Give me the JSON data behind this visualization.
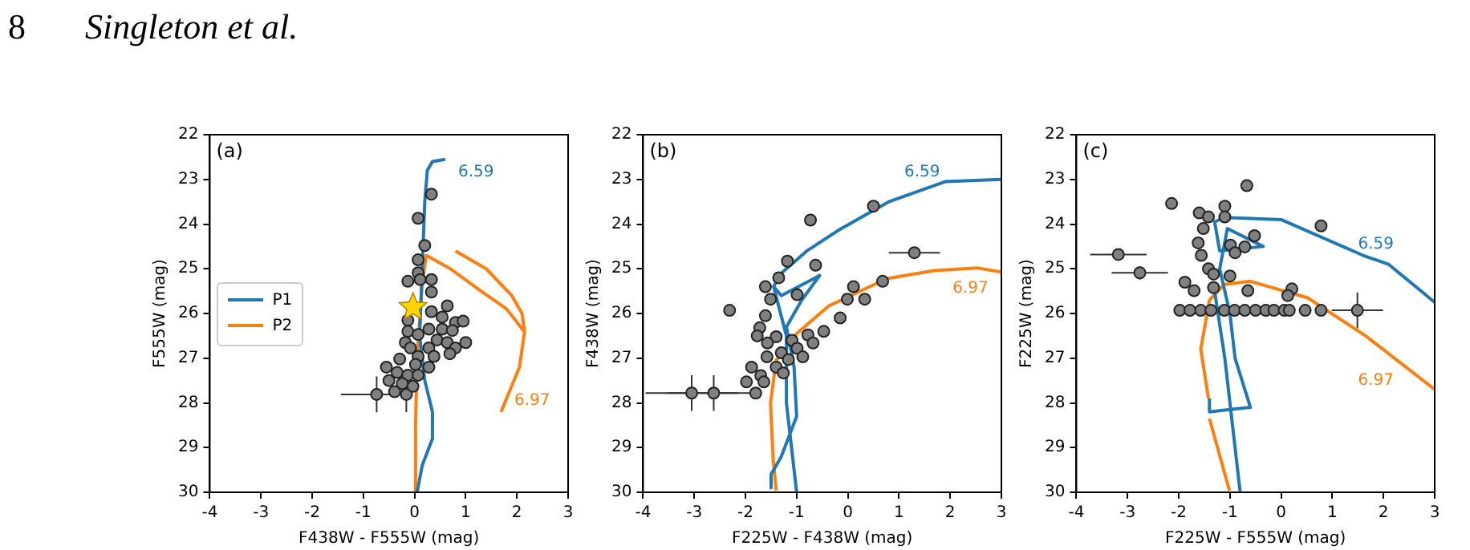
{
  "chart_data": [
    {
      "type": "other",
      "annotations": [
        "8",
        "Singleton et al."
      ]
    },
    {
      "type": "scatter",
      "xlabel": "F438W - F555W (mag)",
      "ylabel": "F555W (mag)",
      "xlim": [
        -4,
        3
      ],
      "xticks": [
        -4,
        -3,
        -2,
        -1,
        0,
        1,
        2,
        3
      ],
      "ylim": [
        30,
        22
      ],
      "yticks": [
        22,
        23,
        24,
        25,
        26,
        27,
        28,
        29,
        30
      ],
      "legend": "left",
      "annotations": [
        "(a)",
        "6.59",
        "6.97"
      ],
      "series": [
        {
          "name": "P1",
          "type": "line",
          "marker": "none",
          "color": "#1f77b4",
          "x": [
            0.6,
            0.35,
            0.25,
            0.2,
            0.15,
            0.1,
            0.2,
            0.35,
            0.35,
            0.15,
            0.05
          ],
          "values": [
            22.55,
            22.6,
            22.8,
            23.5,
            25,
            26.5,
            27.5,
            28.2,
            28.8,
            29.4,
            30
          ]
        },
        {
          "name": "P2",
          "type": "line",
          "marker": "none",
          "color": "#ff7f0e",
          "x": [
            0,
            0.02,
            0.05,
            0.15,
            0.23,
            0.7,
            1.3,
            1.8,
            2.14,
            null,
            0.8,
            1.4,
            1.9,
            2.1,
            2.15,
            2.05,
            1.69
          ],
          "values": [
            30,
            28.5,
            27,
            25.3,
            24.7,
            25.0,
            25.5,
            25.9,
            26.4,
            null,
            24.6,
            25.0,
            25.6,
            26.0,
            26.4,
            27.2,
            28.2
          ]
        },
        {
          "marker": "circle",
          "color": "#808080",
          "x": [
            0.33,
            0.07,
            0.2,
            0.07,
            0.07,
            0.11,
            -0.13,
            0.33,
            0.33,
            0.64,
            0.33,
            -0.13,
            0.54,
            0.8,
            0.95,
            0.28,
            0.54,
            0.74,
            -0.13,
            0.07,
            -0.18,
            0.44,
            0.64,
            1.0,
            0.8,
            0.28,
            -0.08,
            0.07,
            0.38,
            0.69,
            -0.29,
            0.02,
            -0.55,
            0.28,
            -0.34,
            -0.13,
            0.07,
            -0.5,
            -0.24,
            -0.03,
            -0.39
          ],
          "values": [
            23.33,
            23.87,
            24.48,
            24.8,
            25.09,
            25.24,
            25.28,
            25.24,
            25.52,
            25.83,
            25.96,
            26.15,
            26.08,
            26.2,
            26.17,
            26.35,
            26.35,
            26.38,
            26.4,
            26.47,
            26.65,
            26.59,
            26.65,
            26.65,
            26.77,
            26.77,
            26.77,
            26.96,
            26.96,
            26.9,
            27.02,
            27.14,
            27.2,
            27.2,
            27.32,
            27.38,
            27.38,
            27.5,
            27.57,
            27.63,
            27.75
          ]
        },
        {
          "marker": "circle",
          "color": "#808080",
          "x": [
            -0.16,
            -0.74
          ],
          "values": [
            27.81,
            27.81
          ],
          "errors": [
            0.4,
            0.4
          ],
          "xerrors": [
            null,
            0.7
          ]
        },
        {
          "marker": "star",
          "color": "#ffd700",
          "x": [
            -0.03
          ],
          "values": [
            25.86
          ]
        }
      ]
    },
    {
      "type": "scatter",
      "xlabel": "F225W - F438W (mag)",
      "ylabel": "F438W (mag)",
      "xlim": [
        -4,
        3
      ],
      "xticks": [
        -4,
        -3,
        -2,
        -1,
        0,
        1,
        2,
        3
      ],
      "ylim": [
        30,
        22
      ],
      "yticks": [
        22,
        23,
        24,
        25,
        26,
        27,
        28,
        29,
        30
      ],
      "annotations": [
        "(b)",
        "6.59",
        "6.97"
      ],
      "series": [
        {
          "type": "line",
          "marker": "none",
          "color": "#1f77b4",
          "x": [
            3.0,
            1.9,
            0.8,
            -0.2,
            -0.8,
            -1.3,
            -1.45,
            -1.3,
            -0.55,
            -0.9,
            -1.2,
            -1.05,
            -1.0,
            -1.3,
            -1.5,
            -1.5,
            null,
            -1.45,
            -1.2,
            -1.2,
            -1.0
          ],
          "values": [
            23.0,
            23.05,
            23.5,
            24.15,
            24.6,
            25.1,
            25.4,
            25.6,
            25.15,
            25.7,
            26.3,
            27.2,
            28.3,
            29.2,
            29.6,
            29.9,
            null,
            25.4,
            26.5,
            28.0,
            30
          ]
        },
        {
          "type": "line",
          "marker": "none",
          "color": "#ff7f0e",
          "x": [
            3.0,
            2.52,
            1.69,
            0.76,
            -0.37,
            -0.99,
            -1.4,
            -1.51,
            -1.46,
            -1.4
          ],
          "values": [
            25.07,
            24.98,
            25.04,
            25.22,
            25.83,
            26.44,
            27.05,
            28.0,
            29.25,
            29.96
          ]
        },
        {
          "marker": "circle",
          "color": "#808080",
          "x": [
            0.5,
            -0.73,
            -1.18,
            -0.63,
            -2.31,
            -1.61,
            -1.35,
            0.11,
            0.68,
            -0.01,
            0.33,
            -0.15,
            -0.99,
            -1.51,
            -1.61,
            -1.72,
            -0.47,
            -0.78,
            -1.77,
            -1.4,
            -1.09,
            -0.68,
            -1.57,
            -0.99,
            -1.3,
            -1.58,
            -0.88,
            -1.16,
            -1.88,
            -1.4,
            -1.7,
            -1.26,
            -1.98,
            -1.64,
            -1.8
          ],
          "values": [
            23.6,
            23.91,
            24.83,
            24.92,
            25.93,
            25.4,
            25.2,
            25.4,
            25.28,
            25.68,
            25.68,
            26.1,
            25.58,
            25.68,
            26.05,
            26.32,
            26.4,
            26.48,
            26.5,
            26.52,
            26.6,
            26.66,
            26.66,
            26.78,
            26.88,
            26.97,
            26.97,
            27.03,
            27.2,
            27.2,
            27.39,
            27.33,
            27.53,
            27.53,
            27.78
          ]
        },
        {
          "marker": "circle",
          "color": "#808080",
          "x": [
            -3.05,
            -2.62,
            1.3
          ],
          "values": [
            27.78,
            27.78,
            24.64
          ],
          "errors": [
            0.4,
            0.4,
            null
          ],
          "xerrors": [
            0.9,
            0.9,
            0.5
          ]
        }
      ]
    },
    {
      "type": "scatter",
      "xlabel": "F225W - F555W (mag)",
      "ylabel": "F225W (mag)",
      "xlim": [
        -4,
        3
      ],
      "xticks": [
        -4,
        -3,
        -2,
        -1,
        0,
        1,
        2,
        3
      ],
      "ylim": [
        30,
        22
      ],
      "yticks": [
        22,
        23,
        24,
        25,
        26,
        27,
        28,
        29,
        30
      ],
      "annotations": [
        "(c)",
        "6.59",
        "6.97"
      ],
      "series": [
        {
          "type": "line",
          "marker": "none",
          "color": "#1f77b4",
          "x": [
            3.0,
            2.1,
            1.6,
            0.0,
            -1.1,
            -1.3,
            -1.2,
            -0.35,
            -1.05,
            -1.2,
            -1.0,
            -0.9,
            -0.6,
            -1.4,
            -1.4,
            null,
            -1.3,
            -1.1,
            -0.95,
            -0.8
          ],
          "values": [
            25.75,
            24.9,
            24.7,
            23.9,
            23.85,
            23.95,
            24.6,
            24.5,
            24.1,
            25.0,
            26.0,
            27.0,
            28.1,
            28.2,
            27.9,
            null,
            25.5,
            27.0,
            28.5,
            30
          ]
        },
        {
          "type": "line",
          "marker": "none",
          "color": "#ff7f0e",
          "x": [
            3.0,
            1.65,
            0.52,
            -0.6,
            -1.11,
            -1.4,
            -1.57,
            -1.42,
            null,
            -1.4,
            -1.01
          ],
          "values": [
            27.7,
            26.5,
            25.65,
            25.28,
            25.35,
            25.7,
            26.8,
            27.9,
            null,
            28.35,
            29.96
          ]
        },
        {
          "marker": "circle",
          "color": "#808080",
          "x": [
            -0.67,
            -2.14,
            -1.1,
            -1.6,
            -1.42,
            -1.1,
            -1.52,
            0.78,
            -0.52,
            -1.62,
            -0.99,
            -0.71,
            -1.56,
            -0.9,
            -1.42,
            -1.32,
            -1.0,
            -1.88,
            -1.7,
            -0.65,
            0.21,
            -1.32,
            0.13,
            -1.98,
            -1.78,
            -1.57,
            -1.37,
            -1.11,
            -0.91,
            -0.71,
            -0.5,
            -0.3,
            -0.14,
            0.06,
            0.16,
            0.47,
            0.78
          ],
          "values": [
            23.14,
            23.54,
            23.6,
            23.75,
            23.84,
            23.84,
            24.1,
            24.04,
            24.26,
            24.42,
            24.47,
            24.51,
            24.7,
            24.64,
            25.0,
            25.12,
            25.16,
            25.3,
            25.49,
            25.49,
            25.45,
            25.42,
            25.6,
            25.93,
            25.93,
            25.93,
            25.93,
            25.93,
            25.93,
            25.93,
            25.93,
            25.93,
            25.93,
            25.93,
            25.93,
            25.93,
            25.93
          ]
        },
        {
          "marker": "circle",
          "color": "#808080",
          "x": [
            -3.18,
            -2.76,
            1.49
          ],
          "values": [
            24.68,
            25.09,
            25.93
          ],
          "errors": [
            null,
            0.15,
            0.4
          ],
          "xerrors": [
            0.55,
            0.55,
            0.5
          ]
        }
      ]
    }
  ]
}
